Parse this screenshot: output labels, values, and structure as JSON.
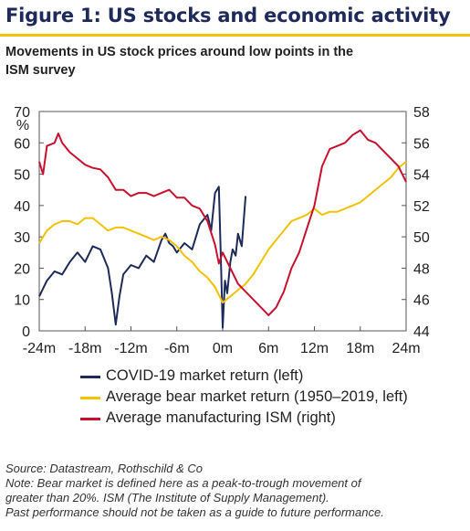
{
  "title": "Figure 1: US stocks and economic activity",
  "subtitle_line1": "Movements in US stock prices around low points in the",
  "subtitle_line2": "ISM survey",
  "chart_data": {
    "type": "line",
    "ylabel_left": "%",
    "x_ticks": [
      -24,
      -18,
      -12,
      -6,
      0,
      6,
      12,
      18,
      24
    ],
    "x_tick_labels": [
      "-24m",
      "-18m",
      "-12m",
      "-6m",
      "0m",
      "6m",
      "12m",
      "18m",
      "24m"
    ],
    "xlim": [
      -24,
      24
    ],
    "ylim_left": [
      0,
      70
    ],
    "ylim_right": [
      44,
      58
    ],
    "y_ticks_left": [
      "0",
      "10",
      "20",
      "30",
      "40",
      "50",
      "60",
      "70"
    ],
    "y_ticks_right": [
      "44",
      "46",
      "48",
      "50",
      "52",
      "54",
      "56",
      "58"
    ],
    "grid": false,
    "series": [
      {
        "name": "COVID-19 market return (left)",
        "axis": "left",
        "color": "#1e2a5a",
        "x": [
          -24,
          -23,
          -22,
          -21,
          -20,
          -19,
          -18,
          -17,
          -16,
          -15,
          -14.5,
          -14,
          -13.5,
          -13,
          -12,
          -11,
          -10,
          -9,
          -8,
          -7.5,
          -7,
          -6.5,
          -6,
          -5,
          -4,
          -3,
          -2,
          -1.5,
          -1,
          -0.5,
          -0.2,
          0,
          0.3,
          0.6,
          1,
          1.3,
          1.7,
          2,
          2.5,
          3
        ],
        "y": [
          11,
          16,
          19,
          18,
          22,
          25,
          22,
          27,
          26,
          20,
          12,
          2,
          11,
          18,
          21,
          20,
          24,
          22,
          29,
          31,
          28,
          27,
          25,
          28,
          26,
          34,
          37,
          32,
          44,
          46,
          20,
          1,
          16,
          12,
          22,
          26,
          24,
          31,
          27,
          43
        ]
      },
      {
        "name": "Average bear market return (1950–2019, left)",
        "axis": "left",
        "color": "#f2c100",
        "x": [
          -24,
          -23,
          -22,
          -21,
          -20,
          -19,
          -18,
          -17,
          -16,
          -15,
          -14,
          -13,
          -12,
          -11,
          -10,
          -9,
          -8,
          -7,
          -6,
          -5,
          -4,
          -3,
          -2,
          -1,
          0,
          1,
          2,
          3,
          4,
          5,
          6,
          7,
          8,
          9,
          10,
          11,
          12,
          13,
          14,
          15,
          16,
          17,
          18,
          19,
          20,
          21,
          22,
          23,
          24
        ],
        "y": [
          28,
          32,
          34,
          35,
          35,
          34,
          36,
          36,
          34,
          32,
          33,
          33,
          32,
          31,
          30,
          29,
          30,
          29,
          27,
          24,
          22,
          19,
          17,
          14,
          9,
          11,
          13,
          15,
          18,
          22,
          26,
          29,
          32,
          35,
          36,
          37,
          39,
          37,
          38,
          38,
          39,
          40,
          41,
          43,
          45,
          47,
          49,
          52,
          54
        ]
      },
      {
        "name": "Average manufacturing ISM (right)",
        "axis": "right",
        "color": "#c8102e",
        "x": [
          -24,
          -23.5,
          -23,
          -22,
          -21.5,
          -21,
          -20,
          -19,
          -18,
          -17,
          -16,
          -15,
          -14,
          -13,
          -12,
          -11,
          -10,
          -9,
          -8,
          -7,
          -6,
          -5,
          -4,
          -3,
          -2,
          -1,
          -0.5,
          0,
          1,
          2,
          3,
          4,
          5,
          6,
          7,
          8,
          9,
          10,
          11,
          12,
          13,
          14,
          15,
          16,
          17,
          18,
          19,
          20,
          21,
          22,
          23,
          24
        ],
        "y": [
          54.8,
          54.0,
          55.8,
          56.0,
          56.6,
          56.0,
          55.4,
          55.0,
          54.6,
          54.4,
          54.3,
          53.8,
          53.0,
          53.0,
          52.6,
          52.8,
          52.8,
          52.6,
          52.8,
          53.0,
          52.5,
          52.5,
          52.0,
          51.8,
          51.0,
          49.5,
          48.3,
          49.0,
          48.0,
          47.0,
          46.5,
          46.0,
          45.5,
          45.0,
          45.5,
          46.5,
          48.0,
          49.0,
          50.5,
          52.0,
          54.5,
          55.6,
          55.8,
          56.0,
          56.5,
          56.8,
          56.2,
          56.0,
          55.5,
          55.0,
          54.5,
          53.5
        ]
      }
    ]
  },
  "source": "Source: Datastream, Rothschild & Co",
  "note_line1": "Note: Bear market is defined here as a peak-to-trough movement of",
  "note_line2": "greater than 20%. ISM (The Institute of Supply Management).",
  "note_line3": "Past performance should not be taken as a guide to future performance."
}
